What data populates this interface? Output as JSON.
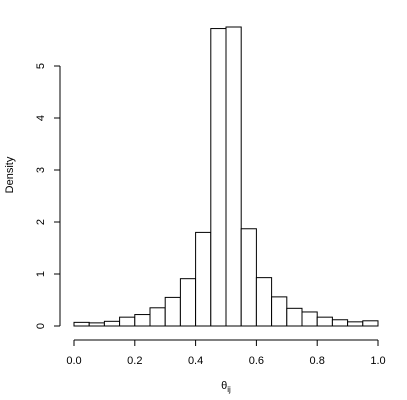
{
  "chart_data": {
    "type": "bar",
    "title": "",
    "xlabel": "θ",
    "xlabel_subscript": "ij",
    "ylabel": "Density",
    "xlim": [
      0,
      1
    ],
    "ylim": [
      0,
      5.8
    ],
    "bin_width": 0.05,
    "bin_edges": [
      0.0,
      0.05,
      0.1,
      0.15,
      0.2,
      0.25,
      0.3,
      0.35,
      0.4,
      0.45,
      0.5,
      0.55,
      0.6,
      0.65,
      0.7,
      0.75,
      0.8,
      0.85,
      0.9,
      0.95,
      1.0
    ],
    "values": [
      0.07,
      0.06,
      0.09,
      0.17,
      0.22,
      0.35,
      0.55,
      0.91,
      1.8,
      5.72,
      5.75,
      1.87,
      0.93,
      0.56,
      0.34,
      0.27,
      0.17,
      0.12,
      0.08,
      0.1
    ],
    "x_ticks": [
      0.0,
      0.2,
      0.4,
      0.6,
      0.8,
      1.0
    ],
    "x_tick_labels": [
      "0.0",
      "0.2",
      "0.4",
      "0.6",
      "0.8",
      "1.0"
    ],
    "y_ticks": [
      0,
      1,
      2,
      3,
      4,
      5
    ],
    "y_tick_labels": [
      "0",
      "1",
      "2",
      "3",
      "4",
      "5"
    ],
    "grid": false,
    "colors": {
      "bar_fill": "#ffffff",
      "bar_stroke": "#000000"
    }
  }
}
